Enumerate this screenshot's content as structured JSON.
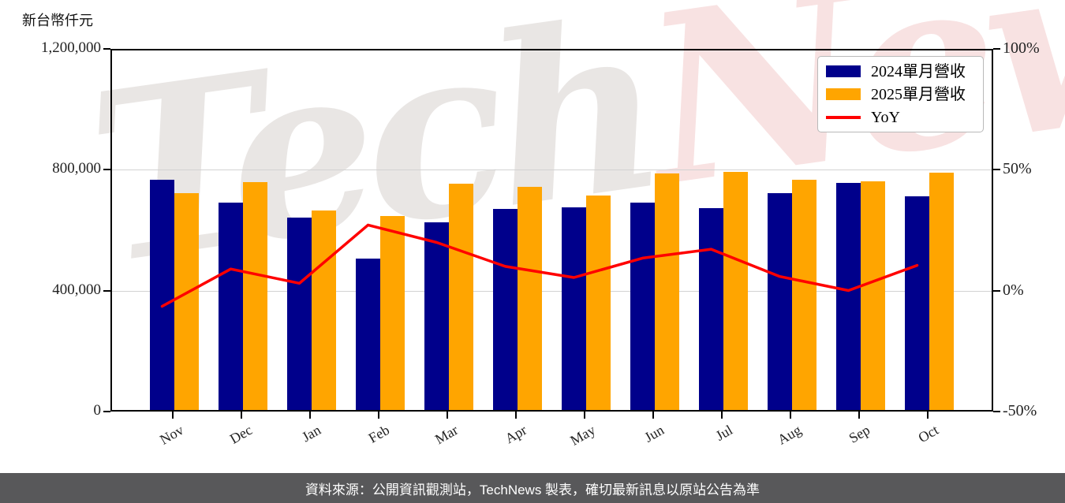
{
  "header": {
    "unit_label": "新台幣仟元"
  },
  "watermark": {
    "left_text": "Tech",
    "right_text": "News",
    "left_color": "#e9e6e4",
    "right_color": "#f8e2e2"
  },
  "footer": {
    "text": "資料來源：公開資訊觀測站，TechNews 製表，確切最新訊息以原站公告為準",
    "background": "#58585a",
    "text_color": "#ffffff"
  },
  "chart_data": {
    "type": "bar",
    "subtype": "grouped-bars-with-line-dual-axis",
    "categories": [
      "Nov",
      "Dec",
      "Jan",
      "Feb",
      "Mar",
      "Apr",
      "May",
      "Jun",
      "Jul",
      "Aug",
      "Sep",
      "Oct"
    ],
    "series": [
      {
        "name": "2024單月營收",
        "type": "bar",
        "axis": "left",
        "color": "#00008b",
        "values": [
          761500,
          687000,
          635500,
          502000,
          622000,
          666000,
          669500,
          685000,
          668500,
          716500,
          751500,
          707500
        ]
      },
      {
        "name": "2025單月營收",
        "type": "bar",
        "axis": "left",
        "color": "#ffa500",
        "values": [
          717000,
          753000,
          659000,
          641500,
          750000,
          737000,
          710500,
          781500,
          787500,
          763000,
          757000,
          786000
        ]
      },
      {
        "name": "YoY",
        "type": "line",
        "axis": "right",
        "color": "#ff0000",
        "values": [
          -5.8,
          9.6,
          3.7,
          27.8,
          20.6,
          10.7,
          6.1,
          14.1,
          17.8,
          6.5,
          0.7,
          11.1
        ]
      }
    ],
    "left_axis": {
      "title": "新台幣仟元",
      "min": 0,
      "max": 1200000,
      "tick_values": [
        0,
        400000,
        800000,
        1200000
      ],
      "tick_labels": [
        "0",
        "400,000",
        "800,000",
        "1,200,000"
      ],
      "gridlines": [
        400000,
        800000
      ]
    },
    "right_axis": {
      "min": -50,
      "max": 100,
      "tick_values": [
        -50,
        0,
        50,
        100
      ],
      "tick_labels": [
        "-50%",
        "0%",
        "50%",
        "100%"
      ]
    },
    "legend": {
      "position": "top-right"
    },
    "grid": "horizontal-light"
  }
}
